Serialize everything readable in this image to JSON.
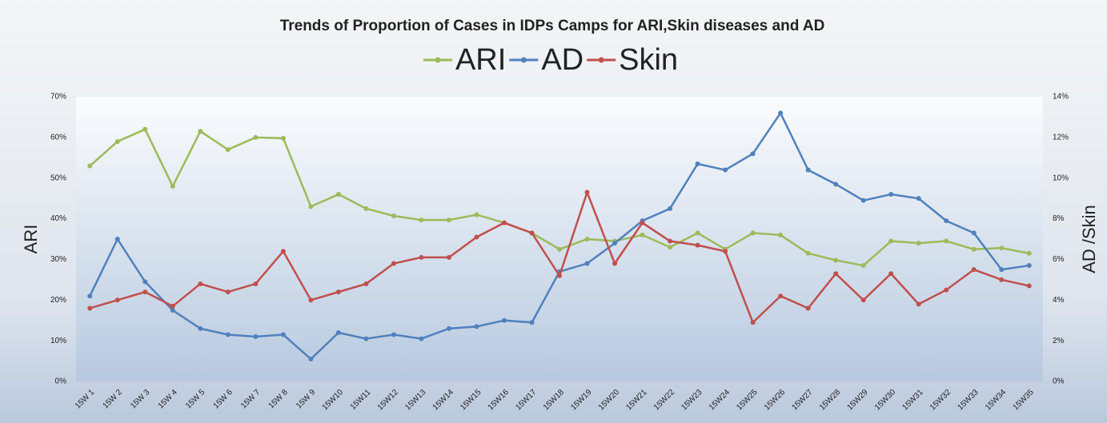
{
  "chart_data": {
    "type": "line",
    "title": "Trends of Proportion of Cases in IDPs Camps for ARI,Skin diseases and AD",
    "ylabel": "ARI",
    "y2label": "AD /Skin",
    "categories": [
      "15W 1",
      "15W 2",
      "15W 3",
      "15W 4",
      "15W 5",
      "15W 6",
      "15W 7",
      "15W 8",
      "15W 9",
      "15W10",
      "15W11",
      "15W12",
      "15W13",
      "15W14",
      "15W15",
      "15W16",
      "15W17",
      "15W18",
      "15W19",
      "15W20",
      "15W21",
      "15W22",
      "15W23",
      "15W24",
      "15W25",
      "15W26",
      "15W27",
      "15W28",
      "15W29",
      "15W30",
      "15W31",
      "15W32",
      "15W33",
      "15W34",
      "15W35"
    ],
    "series": [
      {
        "name": "ARI",
        "color": "#9bbb59",
        "values": [
          53,
          59,
          62,
          48,
          61.5,
          57,
          60,
          59.8,
          43,
          46,
          42.5,
          40.7,
          39.7,
          39.7,
          41,
          39,
          36.5,
          32.5,
          35,
          34.5,
          36,
          33,
          36.5,
          32.5,
          36.5,
          36,
          31.5,
          29.8,
          28.5,
          34.5,
          34,
          34.5,
          32.5,
          32.8,
          31.5
        ]
      },
      {
        "name": "AD",
        "color": "#4f81bd",
        "axis": "y2",
        "values": [
          4.2,
          7.0,
          4.9,
          3.5,
          2.6,
          2.3,
          2.2,
          2.3,
          1.1,
          2.4,
          2.1,
          2.3,
          2.1,
          2.6,
          2.7,
          3.0,
          2.9,
          5.4,
          5.8,
          6.8,
          7.9,
          8.5,
          10.7,
          10.4,
          11.2,
          13.2,
          10.4,
          9.7,
          8.9,
          9.2,
          9.0,
          7.9,
          7.3,
          5.5,
          5.7
        ]
      },
      {
        "name": "Skin",
        "color": "#c0504d",
        "axis": "y2",
        "values": [
          3.6,
          4.0,
          4.4,
          3.7,
          4.8,
          4.4,
          4.8,
          6.4,
          4.0,
          4.4,
          4.8,
          5.8,
          6.1,
          6.1,
          7.1,
          7.8,
          7.3,
          5.2,
          9.3,
          5.8,
          7.8,
          6.9,
          6.7,
          6.4,
          2.9,
          4.2,
          3.6,
          5.3,
          4.0,
          5.3,
          3.8,
          4.5,
          5.5,
          5.0,
          4.7
        ]
      }
    ],
    "ylim": [
      0,
      70
    ],
    "yticks": [
      {
        "value": 0,
        "label": "0%"
      },
      {
        "value": 10,
        "label": "10%"
      },
      {
        "value": 20,
        "label": "20%"
      },
      {
        "value": 30,
        "label": "30%"
      },
      {
        "value": 40,
        "label": "40%"
      },
      {
        "value": 50,
        "label": "50%"
      },
      {
        "value": 60,
        "label": "60%"
      },
      {
        "value": 70,
        "label": "70%"
      }
    ],
    "y2lim": [
      0,
      14
    ],
    "y2ticks": [
      {
        "value": 0,
        "label": "0%"
      },
      {
        "value": 2,
        "label": "2%"
      },
      {
        "value": 4,
        "label": "4%"
      },
      {
        "value": 6,
        "label": "6%"
      },
      {
        "value": 8,
        "label": "8%"
      },
      {
        "value": 10,
        "label": "10%"
      },
      {
        "value": 12,
        "label": "12%"
      },
      {
        "value": 14,
        "label": "14%"
      }
    ],
    "legend": "top",
    "grid": false
  }
}
